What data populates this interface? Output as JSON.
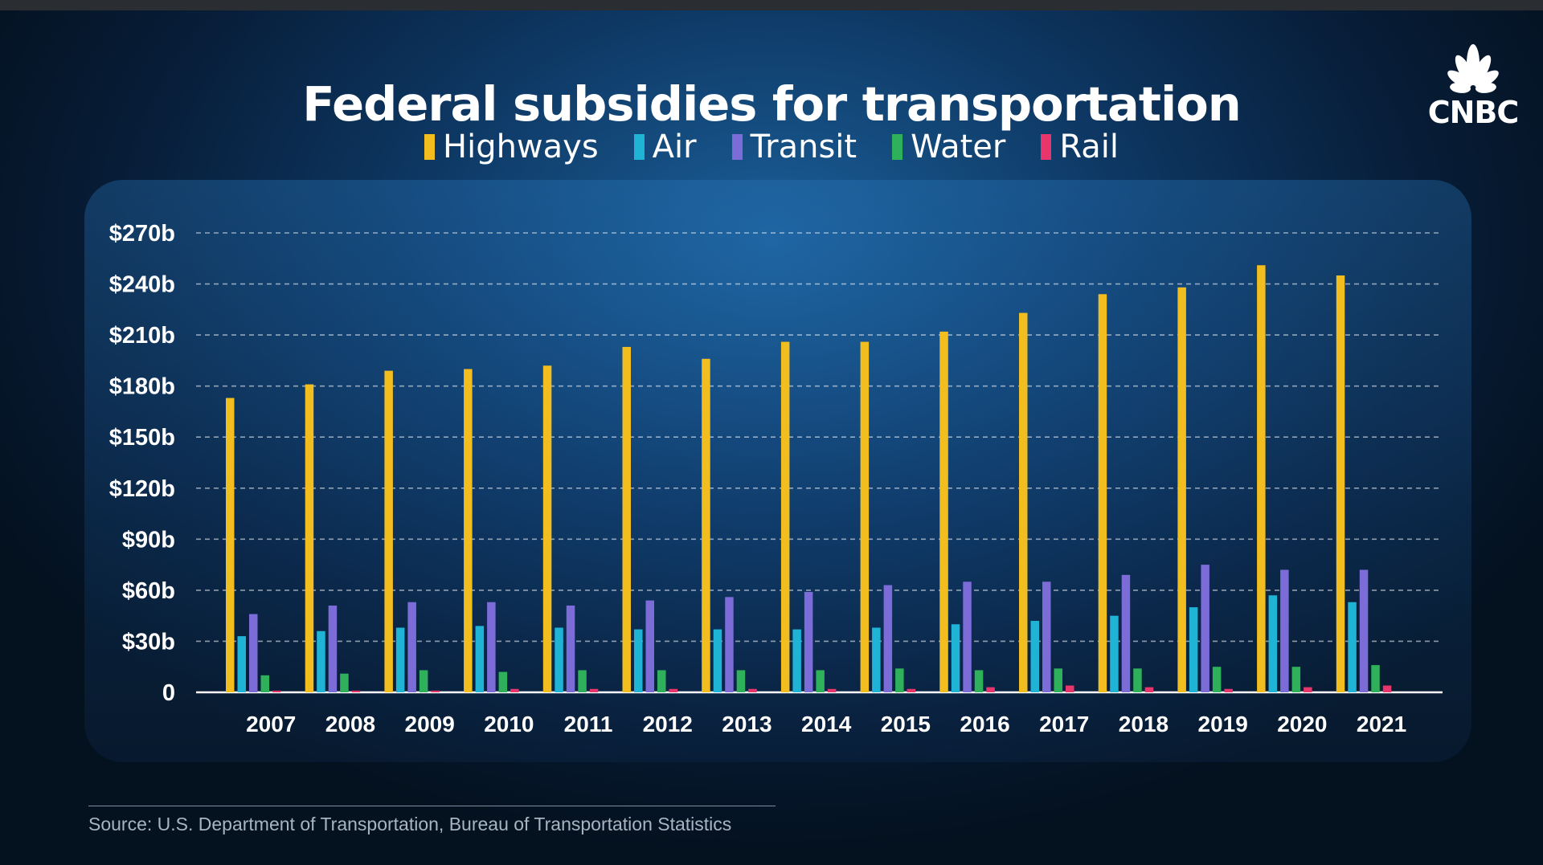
{
  "logo": {
    "text": "CNBC"
  },
  "source": "Source: U.S. Department of Transportation, Bureau of Transportation Statistics",
  "chart_data": {
    "type": "bar",
    "title": "Federal subsidies for transportation",
    "xlabel": "",
    "ylabel": "",
    "ylim": [
      0,
      270
    ],
    "grid": true,
    "legend_position": "top-center",
    "y_ticks": [
      0,
      30,
      60,
      90,
      120,
      150,
      180,
      210,
      240,
      270
    ],
    "y_tick_labels": [
      "0",
      "$30b",
      "$60b",
      "$90b",
      "$120b",
      "$150b",
      "$180b",
      "$210b",
      "$240b",
      "$270b"
    ],
    "categories": [
      "2007",
      "2008",
      "2009",
      "2010",
      "2011",
      "2012",
      "2013",
      "2014",
      "2015",
      "2016",
      "2017",
      "2018",
      "2019",
      "2020",
      "2021"
    ],
    "series": [
      {
        "name": "Highways",
        "color": "#f2bd1f",
        "values": [
          173,
          181,
          189,
          190,
          192,
          203,
          196,
          206,
          206,
          212,
          223,
          234,
          238,
          251,
          245
        ]
      },
      {
        "name": "Air",
        "color": "#1fb3d6",
        "values": [
          33,
          36,
          38,
          39,
          38,
          37,
          37,
          37,
          38,
          40,
          42,
          45,
          50,
          57,
          53
        ]
      },
      {
        "name": "Transit",
        "color": "#7b6cd8",
        "values": [
          46,
          51,
          53,
          53,
          51,
          54,
          56,
          59,
          63,
          65,
          65,
          69,
          75,
          72,
          72
        ]
      },
      {
        "name": "Water",
        "color": "#2fb05a",
        "values": [
          10,
          11,
          13,
          12,
          13,
          13,
          13,
          13,
          14,
          13,
          14,
          14,
          15,
          15,
          16
        ]
      },
      {
        "name": "Rail",
        "color": "#e8356b",
        "values": [
          1,
          1,
          1,
          2,
          2,
          2,
          2,
          2,
          2,
          3,
          4,
          3,
          2,
          3,
          4
        ]
      }
    ]
  }
}
